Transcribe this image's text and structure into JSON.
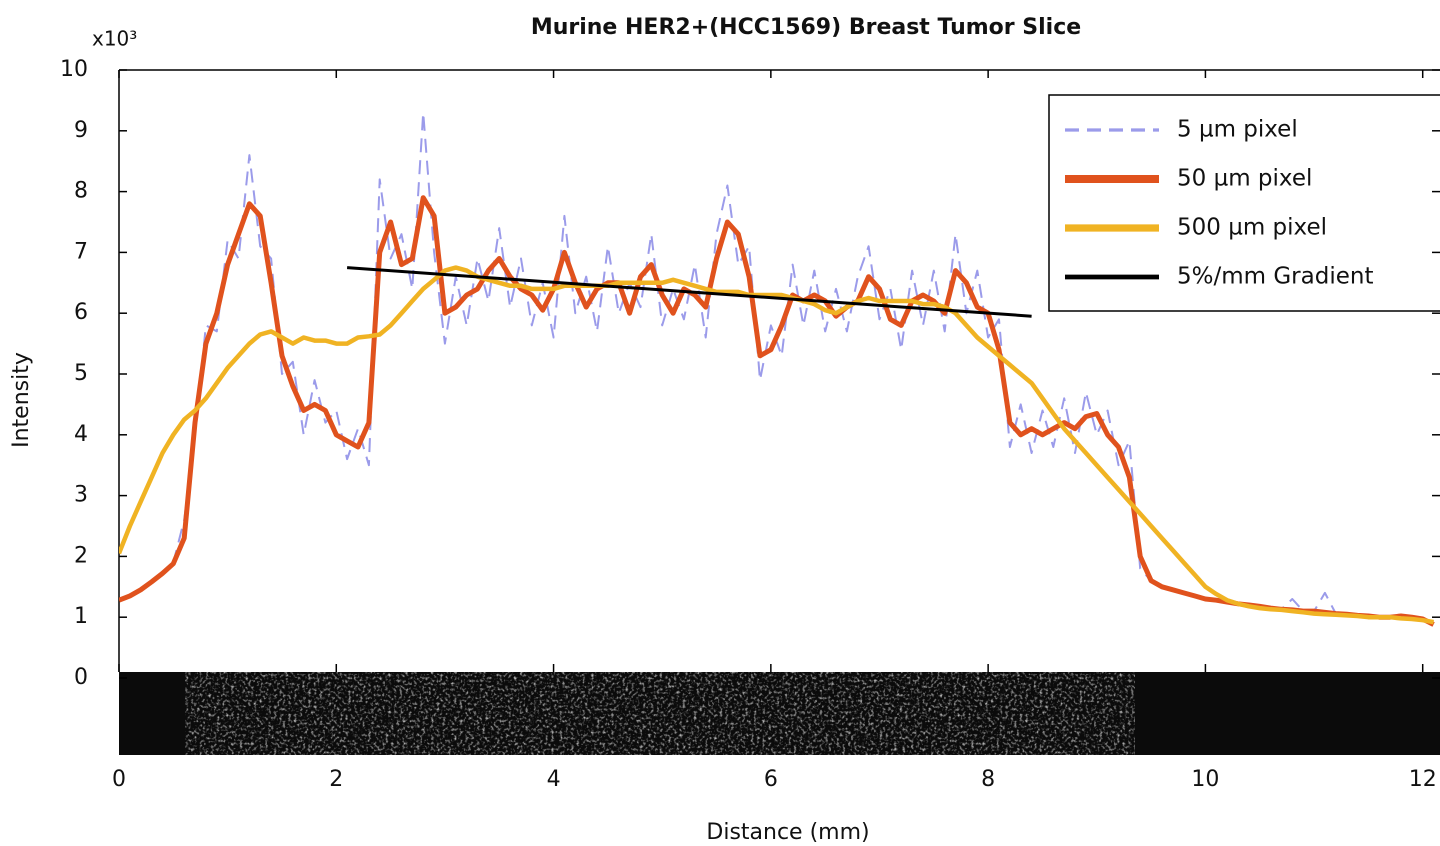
{
  "chart_data": {
    "type": "line",
    "title": "Murine HER2+(HCC1569) Breast Tumor Slice",
    "x_label": "Distance (mm)",
    "y_label": "Intensity",
    "y_multiplier": "x10³",
    "xlim": [
      0,
      12.15
    ],
    "ylim": [
      0,
      10
    ],
    "xticks": [
      0,
      2,
      4,
      6,
      8,
      10,
      12
    ],
    "yticks": [
      0,
      1,
      2,
      3,
      4,
      5,
      6,
      7,
      8,
      9,
      10
    ],
    "legend": "upper right",
    "x": [
      0,
      0.1,
      0.2,
      0.3,
      0.4,
      0.5,
      0.6,
      0.7,
      0.8,
      0.9,
      1,
      1.1,
      1.2,
      1.3,
      1.4,
      1.5,
      1.6,
      1.7,
      1.8,
      1.9,
      2,
      2.1,
      2.2,
      2.3,
      2.4,
      2.5,
      2.6,
      2.7,
      2.8,
      2.9,
      3,
      3.1,
      3.2,
      3.3,
      3.4,
      3.5,
      3.6,
      3.7,
      3.8,
      3.9,
      4,
      4.1,
      4.2,
      4.3,
      4.4,
      4.5,
      4.6,
      4.7,
      4.8,
      4.9,
      5,
      5.1,
      5.2,
      5.3,
      5.4,
      5.5,
      5.6,
      5.7,
      5.8,
      5.9,
      6,
      6.1,
      6.2,
      6.3,
      6.4,
      6.5,
      6.6,
      6.7,
      6.8,
      6.9,
      7,
      7.1,
      7.2,
      7.3,
      7.4,
      7.5,
      7.6,
      7.7,
      7.8,
      7.9,
      8,
      8.1,
      8.2,
      8.3,
      8.4,
      8.5,
      8.6,
      8.7,
      8.8,
      8.9,
      9,
      9.1,
      9.2,
      9.3,
      9.4,
      9.5,
      9.6,
      9.7,
      9.8,
      9.9,
      10,
      10.1,
      10.2,
      10.3,
      10.4,
      10.5,
      10.6,
      10.7,
      10.8,
      10.9,
      11,
      11.1,
      11.2,
      11.3,
      11.4,
      11.5,
      11.6,
      11.7,
      11.8,
      11.9,
      12,
      12.1
    ],
    "series": [
      {
        "name": "5 µm pixel",
        "color": "#9b9bea",
        "style": "dashed",
        "values": [
          1.3,
          1.33,
          1.47,
          1.55,
          1.75,
          1.9,
          2.6,
          4.0,
          5.8,
          5.7,
          7.2,
          6.9,
          8.6,
          7.1,
          6.9,
          5.0,
          5.2,
          4.0,
          4.9,
          4.2,
          4.4,
          3.6,
          4.1,
          3.5,
          8.2,
          6.9,
          7.3,
          6.4,
          9.3,
          7.0,
          5.5,
          6.6,
          5.8,
          6.9,
          6.2,
          7.4,
          6.1,
          6.9,
          5.8,
          6.5,
          5.6,
          7.6,
          6.0,
          6.6,
          5.7,
          7.1,
          6.0,
          6.5,
          6.1,
          7.3,
          5.8,
          6.4,
          5.9,
          6.8,
          5.6,
          7.3,
          8.1,
          6.8,
          7.1,
          4.9,
          5.8,
          5.3,
          6.8,
          5.8,
          6.7,
          5.7,
          6.4,
          5.7,
          6.6,
          7.1,
          5.9,
          6.4,
          5.4,
          6.7,
          5.8,
          6.7,
          5.7,
          7.3,
          6.0,
          6.7,
          5.6,
          5.9,
          3.8,
          4.5,
          3.7,
          4.4,
          3.8,
          4.6,
          3.7,
          4.7,
          4.0,
          4.4,
          3.5,
          3.9,
          1.8,
          1.6,
          1.5,
          1.45,
          1.4,
          1.35,
          1.3,
          1.28,
          1.25,
          1.22,
          1.2,
          1.18,
          1.15,
          1.13,
          1.3,
          1.1,
          1.1,
          1.4,
          1.06,
          1.05,
          1.03,
          1.02,
          1.0,
          1.0,
          1.02,
          1.0,
          0.97,
          0.88
        ]
      },
      {
        "name": "50 µm pixel",
        "color": "#e0521d",
        "style": "solid",
        "values": [
          1.28,
          1.35,
          1.45,
          1.58,
          1.72,
          1.88,
          2.3,
          4.2,
          5.5,
          6.0,
          6.8,
          7.3,
          7.8,
          7.6,
          6.5,
          5.3,
          4.8,
          4.4,
          4.5,
          4.4,
          4.0,
          3.9,
          3.8,
          4.2,
          7.0,
          7.5,
          6.8,
          6.9,
          7.9,
          7.6,
          6.0,
          6.1,
          6.3,
          6.4,
          6.7,
          6.9,
          6.6,
          6.4,
          6.3,
          6.05,
          6.4,
          7.0,
          6.5,
          6.1,
          6.4,
          6.5,
          6.5,
          6.0,
          6.6,
          6.8,
          6.3,
          6.0,
          6.4,
          6.3,
          6.1,
          6.9,
          7.5,
          7.3,
          6.6,
          5.3,
          5.4,
          5.8,
          6.3,
          6.2,
          6.3,
          6.2,
          5.95,
          6.1,
          6.2,
          6.6,
          6.4,
          5.9,
          5.8,
          6.2,
          6.3,
          6.2,
          6.0,
          6.7,
          6.5,
          6.1,
          6.0,
          5.4,
          4.2,
          4.0,
          4.1,
          4.0,
          4.1,
          4.2,
          4.1,
          4.3,
          4.35,
          4.0,
          3.8,
          3.3,
          2.0,
          1.6,
          1.5,
          1.45,
          1.4,
          1.35,
          1.3,
          1.28,
          1.25,
          1.22,
          1.2,
          1.18,
          1.15,
          1.13,
          1.12,
          1.1,
          1.1,
          1.08,
          1.06,
          1.05,
          1.03,
          1.02,
          1.0,
          1.0,
          1.02,
          1.0,
          0.97,
          0.88
        ]
      },
      {
        "name": "500 µm pixel",
        "color": "#f0b323",
        "style": "solid",
        "values": [
          2.05,
          2.5,
          2.9,
          3.3,
          3.7,
          4.0,
          4.25,
          4.4,
          4.6,
          4.85,
          5.1,
          5.3,
          5.5,
          5.65,
          5.7,
          5.6,
          5.5,
          5.6,
          5.55,
          5.55,
          5.5,
          5.5,
          5.6,
          5.62,
          5.65,
          5.8,
          6.0,
          6.2,
          6.4,
          6.55,
          6.7,
          6.75,
          6.7,
          6.6,
          6.55,
          6.5,
          6.45,
          6.45,
          6.4,
          6.4,
          6.4,
          6.45,
          6.45,
          6.45,
          6.45,
          6.45,
          6.5,
          6.5,
          6.5,
          6.5,
          6.5,
          6.55,
          6.5,
          6.45,
          6.4,
          6.35,
          6.35,
          6.35,
          6.3,
          6.3,
          6.3,
          6.3,
          6.25,
          6.2,
          6.15,
          6.05,
          6.0,
          6.1,
          6.2,
          6.25,
          6.2,
          6.2,
          6.2,
          6.2,
          6.15,
          6.15,
          6.1,
          6.0,
          5.8,
          5.6,
          5.45,
          5.3,
          5.15,
          5.0,
          4.85,
          4.6,
          4.35,
          4.1,
          3.9,
          3.7,
          3.5,
          3.3,
          3.1,
          2.9,
          2.7,
          2.5,
          2.3,
          2.1,
          1.9,
          1.7,
          1.5,
          1.38,
          1.28,
          1.22,
          1.18,
          1.15,
          1.13,
          1.12,
          1.1,
          1.08,
          1.06,
          1.05,
          1.04,
          1.03,
          1.02,
          1.0,
          1.0,
          1.0,
          0.98,
          0.97,
          0.95,
          0.92
        ]
      },
      {
        "name": "5%/mm Gradient",
        "color": "#000000",
        "style": "solid",
        "x": [
          2.1,
          8.4
        ],
        "values": [
          6.75,
          5.95
        ]
      }
    ]
  }
}
